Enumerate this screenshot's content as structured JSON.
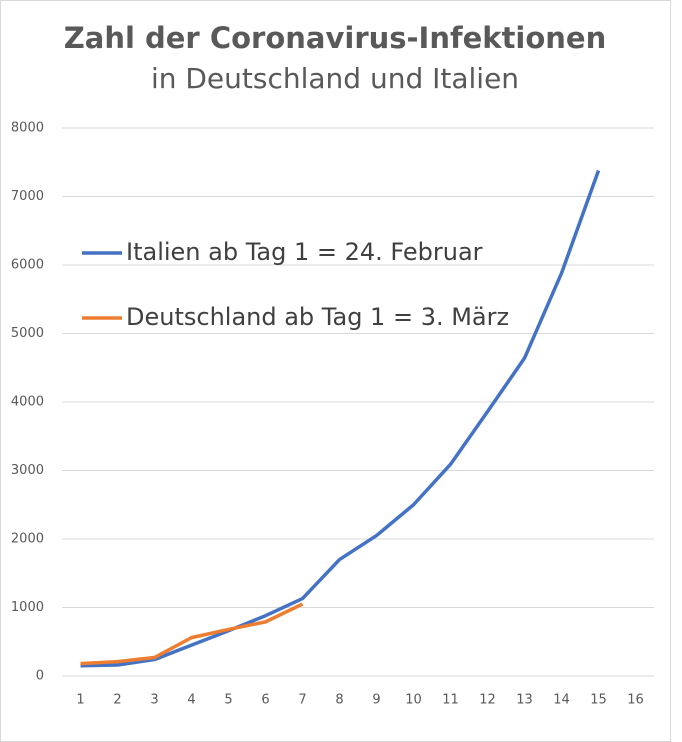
{
  "chart_data": {
    "type": "line",
    "title": "Zahl der Coronavirus-Infektionen",
    "subtitle": "in Deutschland und Italien",
    "categories": [
      "1",
      "2",
      "3",
      "4",
      "5",
      "6",
      "7",
      "8",
      "9",
      "10",
      "11",
      "12",
      "13",
      "14",
      "15",
      "16"
    ],
    "series": [
      {
        "name": "Italien ab Tag 1 = 24. Februar",
        "color": "#4472c4",
        "values": [
          150,
          160,
          240,
          450,
          660,
          880,
          1130,
          1700,
          2050,
          2500,
          3090,
          3860,
          4640,
          5880,
          7380,
          null
        ]
      },
      {
        "name": "Deutschland ab Tag 1 = 3. März",
        "color": "#ed7d31",
        "values": [
          180,
          210,
          270,
          560,
          680,
          790,
          1050,
          null,
          null,
          null,
          null,
          null,
          null,
          null,
          null,
          null
        ]
      }
    ],
    "ylim": [
      0,
      8000
    ],
    "yticks": [
      0,
      1000,
      2000,
      3000,
      4000,
      5000,
      6000,
      7000,
      8000
    ],
    "grid": true,
    "legend": "upper left"
  }
}
